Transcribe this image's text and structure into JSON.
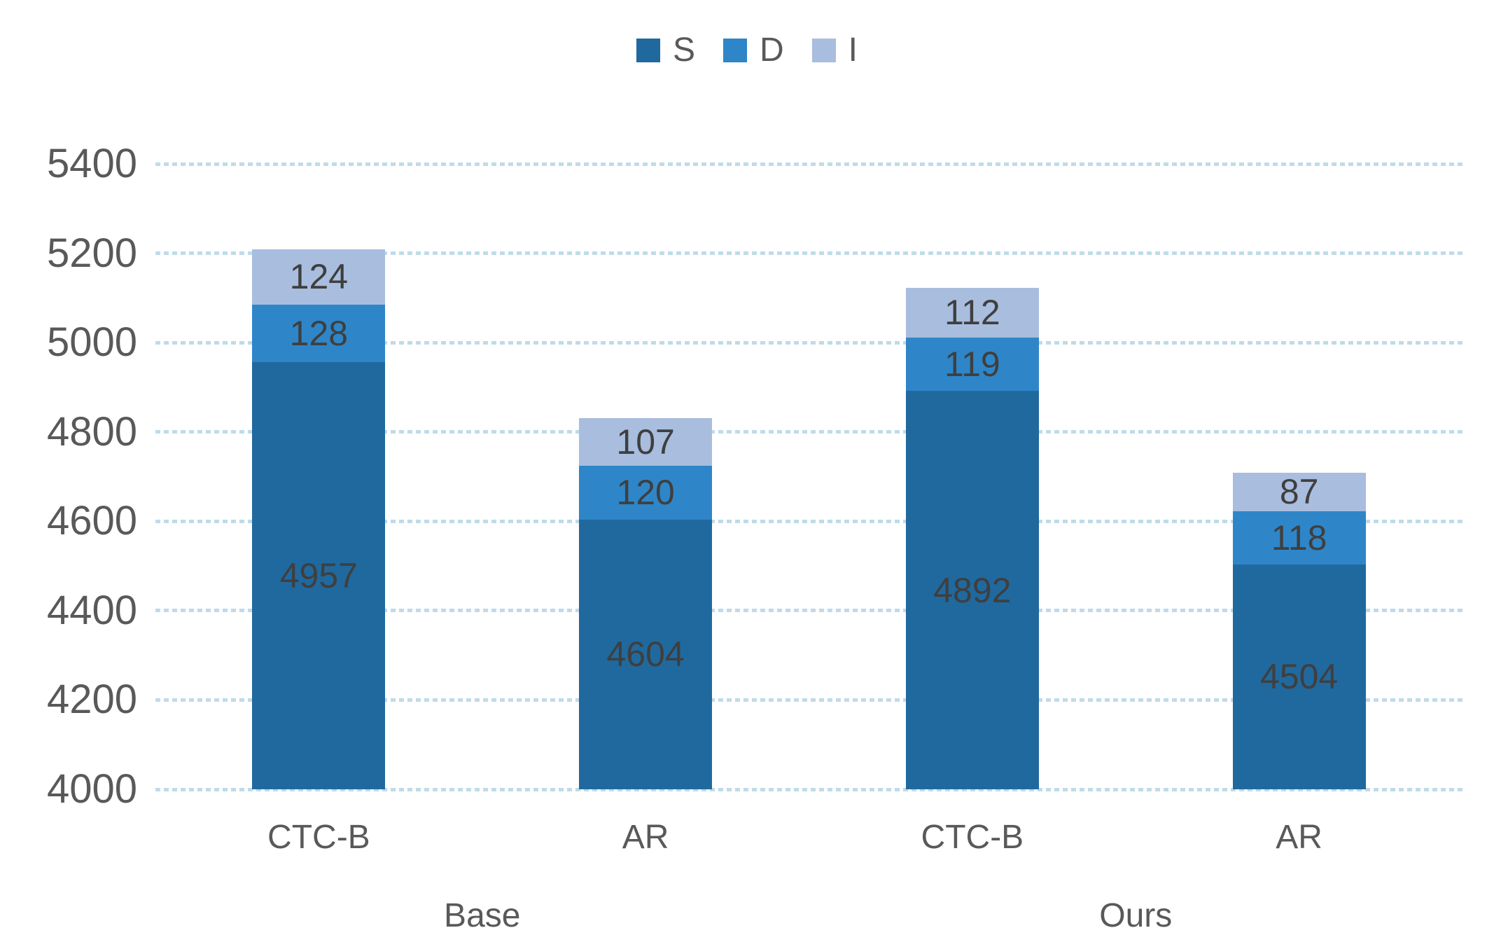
{
  "chart_data": {
    "type": "bar",
    "stacked": true,
    "categories": [
      "CTC-B",
      "AR",
      "CTC-B",
      "AR"
    ],
    "group_labels": [
      "Base",
      "Ours"
    ],
    "series": [
      {
        "name": "S",
        "color": "#20699e",
        "values": [
          4957,
          4604,
          4892,
          4504
        ]
      },
      {
        "name": "D",
        "color": "#2e86c8",
        "values": [
          128,
          120,
          119,
          118
        ]
      },
      {
        "name": "I",
        "color": "#a9bdde",
        "values": [
          124,
          107,
          112,
          87
        ]
      }
    ],
    "ylim": [
      4000,
      5400
    ],
    "yticks": [
      5400,
      5200,
      5000,
      4800,
      4600,
      4400,
      4200,
      4000
    ],
    "grid": {
      "style": "dashed-dotted",
      "color": "#bfdbe9",
      "orientation": "horizontal"
    },
    "legend_position": "top-center",
    "colors": {
      "axis_text": "#595959",
      "data_label_text": "#3f3f3f",
      "background": "#ffffff"
    }
  }
}
